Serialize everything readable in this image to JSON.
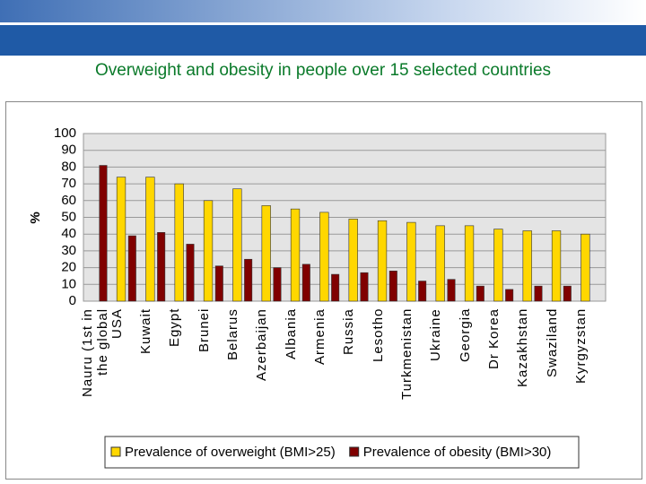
{
  "chart_data": {
    "type": "bar",
    "title": "Overweight and obesity in people over 15 selected countries",
    "y_label": "%",
    "categories": [
      "Nauru (1st in the global",
      "USA",
      "Kuwait",
      "Egypt",
      "Brunei",
      "Belarus",
      "Azerbaijan",
      "Albania",
      "Armenia",
      "Russia",
      "Lesotho",
      "Turkmenistan",
      "Ukraine",
      "Georgia",
      "Dr Korea",
      "Kazakhstan",
      "Swaziland",
      "Kyrgyzstan"
    ],
    "series": [
      {
        "name": "Prevalence of overweight (BMI>25)",
        "color": "#ffd700",
        "values": [
          null,
          74,
          74,
          70,
          60,
          67,
          57,
          55,
          53,
          49,
          48,
          47,
          45,
          45,
          43,
          42,
          42,
          40
        ]
      },
      {
        "name": "Prevalence of obesity (BMI>30)",
        "color": "#800000",
        "values": [
          81,
          39,
          41,
          34,
          21,
          25,
          20,
          22,
          16,
          17,
          18,
          12,
          13,
          9,
          7,
          9,
          9,
          null
        ]
      }
    ],
    "ylim": [
      0,
      100
    ],
    "yticks": [
      0,
      10,
      20,
      30,
      40,
      50,
      60,
      70,
      80,
      90,
      100
    ],
    "grid": true,
    "legend": "bottom"
  }
}
